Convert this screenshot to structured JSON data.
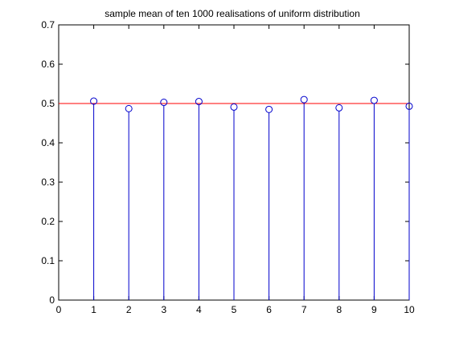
{
  "chart_data": {
    "type": "stem",
    "title": "sample mean of ten 1000 realisations of uniform distribution",
    "xlabel": "",
    "ylabel": "",
    "xlim": [
      0,
      10
    ],
    "ylim": [
      0,
      0.7
    ],
    "xticks": [
      0,
      1,
      2,
      3,
      4,
      5,
      6,
      7,
      8,
      9,
      10
    ],
    "yticks": [
      0,
      0.1,
      0.2,
      0.3,
      0.4,
      0.5,
      0.6,
      0.7
    ],
    "grid": false,
    "series": [
      {
        "x": [
          1,
          2,
          3,
          4,
          5,
          6,
          7,
          8,
          9,
          10
        ],
        "values": [
          0.506,
          0.487,
          0.503,
          0.505,
          0.491,
          0.485,
          0.51,
          0.489,
          0.508,
          0.493
        ],
        "color": "#0000cc",
        "marker": "circle"
      }
    ],
    "reference_line": {
      "y": 0.5,
      "color": "#ff0000"
    }
  }
}
